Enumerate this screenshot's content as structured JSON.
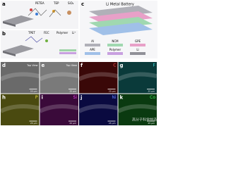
{
  "panel_a": {
    "label": "a",
    "molecules": [
      "PETEA",
      "TEP",
      "SiO₂"
    ]
  },
  "panel_b": {
    "label": "b",
    "molecules": [
      "TPET",
      "FEC",
      "Polymer",
      "Li⁺"
    ]
  },
  "panel_c": {
    "label": "c",
    "title": "Li Metal Battery",
    "layers": [
      "Al",
      "NCM",
      "GPE",
      "APE",
      "Polymer",
      "Li"
    ]
  },
  "micrographs": [
    {
      "label": "d",
      "tag": "Top View",
      "scale": "50 μm"
    },
    {
      "label": "e",
      "tag": "Top View",
      "scale": "25 μm"
    },
    {
      "label": "f",
      "tag": "C",
      "scale": "25 μm"
    },
    {
      "label": "g",
      "tag": "F",
      "scale": "25 μm"
    },
    {
      "label": "h",
      "tag": "P",
      "scale": "25 μm"
    },
    {
      "label": "i",
      "tag": "Si",
      "scale": "25 μm"
    },
    {
      "label": "j",
      "tag": "Ni",
      "scale": "25 μm"
    },
    {
      "label": "k",
      "tag": "Co",
      "scale": "25 μm"
    }
  ],
  "watermark": "高分子科学前沿"
}
